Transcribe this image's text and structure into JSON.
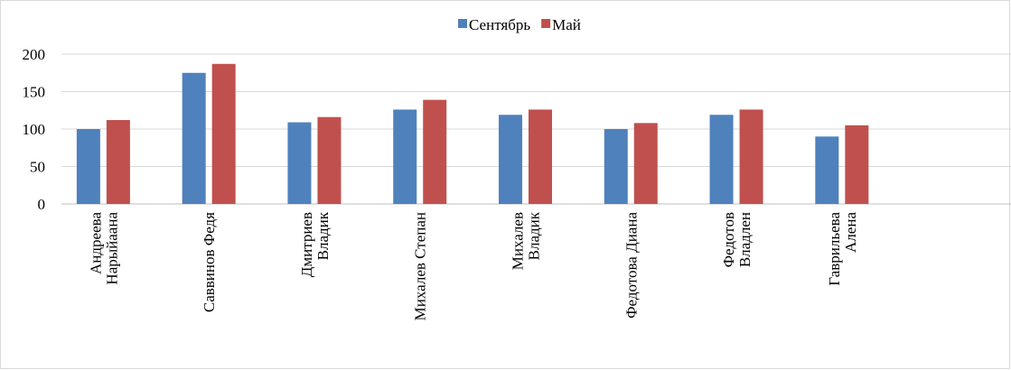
{
  "chart_data": {
    "type": "bar",
    "categories": [
      "Андреева\nНарыйаана",
      "Саввинов Федя",
      "Дмитриев\nВладик",
      "Михалев Степан",
      "Михалев\nВладик",
      "Федотова Диана",
      "Федотов\nВладлен",
      "Гаврильева\nАлена",
      null
    ],
    "series": [
      {
        "name": "Сентябрь",
        "color": "#4f81bd",
        "values": [
          100,
          175,
          109,
          126,
          119,
          100,
          119,
          90,
          null
        ]
      },
      {
        "name": "Май",
        "color": "#c0504d",
        "values": [
          112,
          187,
          116,
          139,
          126,
          108,
          126,
          105,
          null
        ]
      }
    ],
    "ylim": [
      0,
      200
    ],
    "yticks": [
      0,
      50,
      100,
      150,
      200
    ],
    "grid": true,
    "legend": "top"
  }
}
